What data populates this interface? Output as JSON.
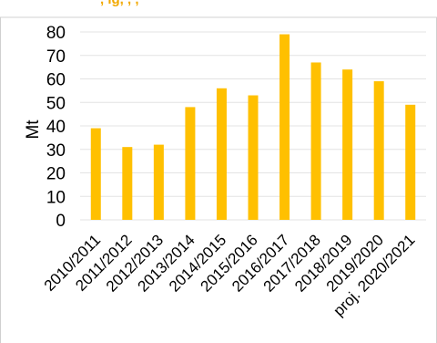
{
  "header": {
    "title_fragment": ", ig, ,  , "
  },
  "chart_data": {
    "type": "bar",
    "title": "",
    "xlabel": "",
    "ylabel": "Mt",
    "ylim": [
      0,
      80
    ],
    "yticks": [
      0,
      10,
      20,
      30,
      40,
      50,
      60,
      70,
      80
    ],
    "grid": true,
    "categories": [
      "2010/2011",
      "2011/2012",
      "2012/2013",
      "2013/2014",
      "2014/2015",
      "2015/2016",
      "2016/2017",
      "2017/2018",
      "2018/2019",
      "2019/2020",
      "proj. 2020/2021"
    ],
    "series": [
      {
        "values": [
          39,
          31,
          32,
          48,
          56,
          53,
          79,
          67,
          64,
          59,
          49
        ],
        "color": "#ffc000"
      }
    ]
  }
}
